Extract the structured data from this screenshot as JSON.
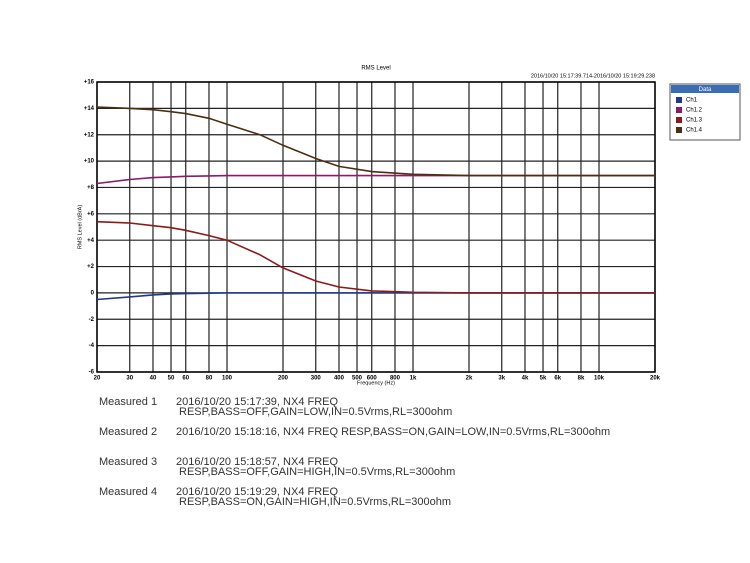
{
  "chart_data": {
    "type": "line",
    "title": "RMS Level",
    "subtitle": "2016/10/20 15:17:39.714-2016/10/20 15:19:29.238",
    "x_label": "Frequency (Hz)",
    "y_label": "RMS Level (dBrA)",
    "legend_title": "Data",
    "legend": "right",
    "grid": true,
    "xscale": "log",
    "x": [
      20,
      30,
      40,
      50,
      60,
      80,
      100,
      150,
      200,
      300,
      400,
      600,
      1000,
      2000,
      5000,
      10000,
      20000
    ],
    "series": [
      {
        "name": "Ch1",
        "color": "#1f3a8a",
        "values": [
          -0.5,
          -0.3,
          -0.15,
          -0.08,
          -0.05,
          -0.02,
          0,
          0,
          0,
          0,
          0,
          0,
          0,
          0,
          0,
          0,
          0
        ]
      },
      {
        "name": "Ch1.2",
        "color": "#8b1a6b",
        "values": [
          8.3,
          8.6,
          8.75,
          8.8,
          8.85,
          8.88,
          8.9,
          8.9,
          8.9,
          8.9,
          8.9,
          8.9,
          8.9,
          8.9,
          8.9,
          8.9,
          8.9
        ]
      },
      {
        "name": "Ch1.3",
        "color": "#8b1a1a",
        "values": [
          5.4,
          5.3,
          5.1,
          4.95,
          4.75,
          4.35,
          4.0,
          2.9,
          1.9,
          0.9,
          0.45,
          0.15,
          0.05,
          0,
          0,
          0,
          0
        ]
      },
      {
        "name": "Ch1.4",
        "color": "#4a3010",
        "values": [
          14.1,
          14.0,
          13.9,
          13.75,
          13.6,
          13.25,
          12.8,
          12.0,
          11.2,
          10.2,
          9.6,
          9.2,
          9.0,
          8.9,
          8.9,
          8.9,
          8.9
        ]
      }
    ],
    "xlim": [
      20,
      20000
    ],
    "xticks": [
      20,
      30,
      40,
      50,
      60,
      80,
      100,
      200,
      300,
      400,
      500,
      600,
      800,
      {
        "value": 1000,
        "label": "1k"
      },
      {
        "value": 2000,
        "label": "2k"
      },
      {
        "value": 3000,
        "label": "3k"
      },
      {
        "value": 4000,
        "label": "4k"
      },
      {
        "value": 5000,
        "label": "5k"
      },
      {
        "value": 6000,
        "label": "6k"
      },
      {
        "value": 8000,
        "label": "8k"
      },
      {
        "value": 10000,
        "label": "10k"
      },
      {
        "value": 20000,
        "label": "20k"
      }
    ],
    "ylim": [
      -6,
      16
    ],
    "yticks": [
      {
        "value": 16,
        "label": "+16"
      },
      {
        "value": 14,
        "label": "+14"
      },
      {
        "value": 12,
        "label": "+12"
      },
      {
        "value": 10,
        "label": "+10"
      },
      {
        "value": 8,
        "label": "+8"
      },
      {
        "value": 6,
        "label": "+6"
      },
      {
        "value": 4,
        "label": "+4"
      },
      {
        "value": 2,
        "label": "+2"
      },
      0,
      -2,
      -4,
      -6
    ]
  },
  "notes": [
    {
      "label": "Measured 1",
      "lines": [
        "2016/10/20 15:17:39, NX4 FREQ",
        "RESP,BASS=OFF,GAIN=LOW,IN=0.5Vrms,RL=300ohm"
      ]
    },
    {
      "label": "Measured 2",
      "lines": [
        "2016/10/20 15:18:16, NX4 FREQ RESP,BASS=ON,GAIN=LOW,IN=0.5Vrms,RL=300ohm"
      ]
    },
    {
      "label": "Measured 3",
      "lines": [
        "2016/10/20 15:18:57, NX4 FREQ",
        "RESP,BASS=OFF,GAIN=HIGH,IN=0.5Vrms,RL=300ohm"
      ]
    },
    {
      "label": "Measured 4",
      "lines": [
        "2016/10/20 15:19:29, NX4 FREQ",
        "RESP,BASS=ON,GAIN=HIGH,IN=0.5Vrms,RL=300ohm"
      ]
    }
  ]
}
